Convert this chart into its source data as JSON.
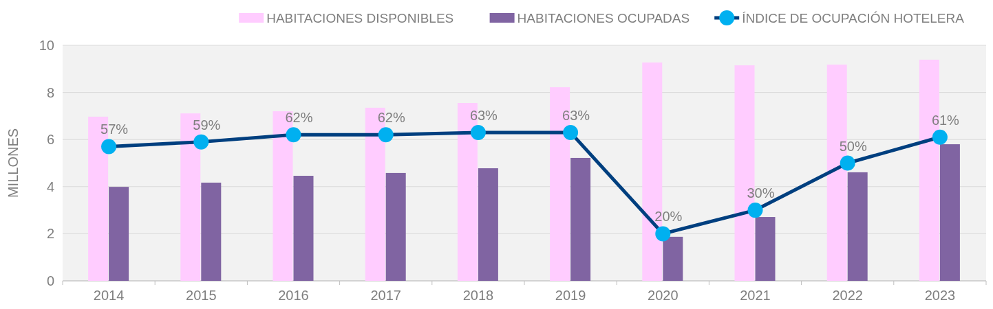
{
  "chart_data": {
    "type": "bar",
    "ylabel": "MILLONES",
    "categories": [
      "2014",
      "2015",
      "2016",
      "2017",
      "2018",
      "2019",
      "2020",
      "2021",
      "2022",
      "2023"
    ],
    "series": [
      {
        "name": "HABITACIONES DISPONIBLES",
        "color": "#ffccff",
        "values": [
          6.97,
          7.11,
          7.2,
          7.35,
          7.55,
          8.22,
          9.27,
          9.15,
          9.18,
          9.39
        ]
      },
      {
        "name": "HABITACIONES OCUPADAS",
        "color": "#8064a2",
        "values": [
          3.99,
          4.17,
          4.46,
          4.58,
          4.78,
          5.22,
          1.87,
          2.71,
          4.61,
          5.8
        ]
      },
      {
        "name": "ÍNDICE DE OCUPACIÓN HOTELERA",
        "type": "line",
        "axis": "y2",
        "color": "#003f7f",
        "marker": "circle",
        "values": [
          57,
          59,
          62,
          62,
          63,
          63,
          20,
          30,
          50,
          61
        ],
        "value_labels": [
          "57%",
          "59%",
          "62%",
          "62%",
          "63%",
          "63%",
          "20%",
          "30%",
          "50%",
          "61%"
        ]
      }
    ],
    "ylim": [
      0,
      10
    ],
    "yticks": [
      0,
      2,
      4,
      6,
      8,
      10
    ],
    "y2lim": [
      0,
      100
    ],
    "grid": "y",
    "legend": "top"
  }
}
